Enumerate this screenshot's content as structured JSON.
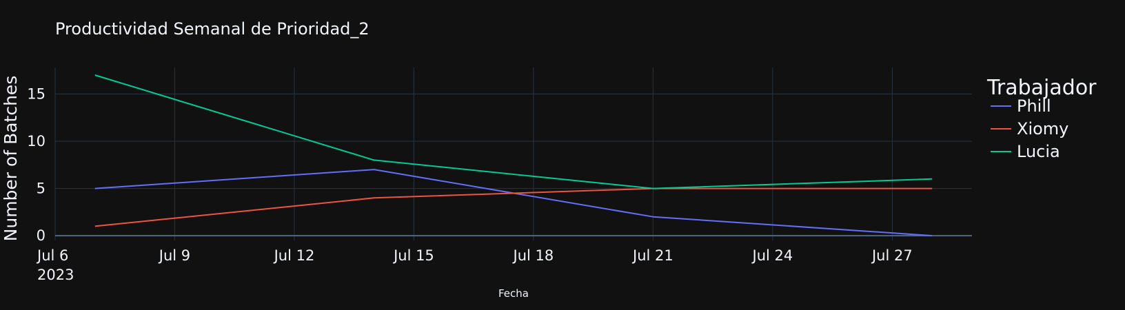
{
  "chart_data": {
    "type": "line",
    "title": "Productividad Semanal de Prioridad_2",
    "xlabel": "Fecha",
    "ylabel": "Number of Batches",
    "x": [
      "2023-07-07",
      "2023-07-14",
      "2023-07-21",
      "2023-07-28"
    ],
    "xlim": [
      "2023-07-06",
      "2023-07-29"
    ],
    "ylim": [
      -0.5,
      17.8
    ],
    "x_ticks": [
      {
        "date": "2023-07-06",
        "label": "Jul 6",
        "sub": "2023"
      },
      {
        "date": "2023-07-09",
        "label": "Jul 9"
      },
      {
        "date": "2023-07-12",
        "label": "Jul 12"
      },
      {
        "date": "2023-07-15",
        "label": "Jul 15"
      },
      {
        "date": "2023-07-18",
        "label": "Jul 18"
      },
      {
        "date": "2023-07-21",
        "label": "Jul 21"
      },
      {
        "date": "2023-07-24",
        "label": "Jul 24"
      },
      {
        "date": "2023-07-27",
        "label": "Jul 27"
      }
    ],
    "y_ticks": [
      0,
      5,
      10,
      15
    ],
    "grid": true,
    "legend": {
      "title": "Trabajador",
      "position": "right"
    },
    "series": [
      {
        "name": "Phill",
        "color": "#636efa",
        "values": [
          5,
          7,
          2,
          0
        ]
      },
      {
        "name": "Xiomy",
        "color": "#ef553b",
        "values": [
          1,
          4,
          5,
          5
        ]
      },
      {
        "name": "Lucia",
        "color": "#00cc96",
        "values": [
          17,
          8,
          5,
          6
        ]
      }
    ]
  }
}
